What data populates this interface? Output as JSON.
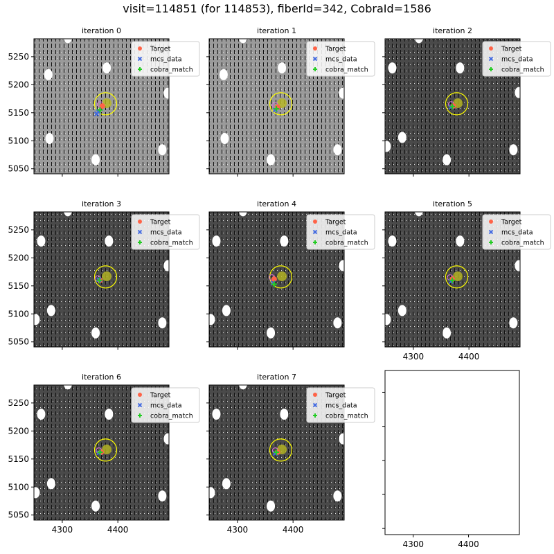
{
  "title": "visit=114851 (for 114853), fiberId=342, CobraId=1586",
  "chart_data": {
    "type": "scatter",
    "xlim": [
      4249,
      4492
    ],
    "ylim": [
      5041,
      5282
    ],
    "xticks": [
      4300,
      4400
    ],
    "yticks": [
      5050,
      5100,
      5150,
      5200,
      5250
    ],
    "legend": {
      "placement": "top-right",
      "entries": [
        "Target",
        "mcs_data",
        "cobra_match"
      ]
    },
    "colors": {
      "Target": "#ff6347",
      "mcs_data": "#4169e1",
      "cobra_match": "#22cc22",
      "patrol": "#ffff00"
    },
    "patrol_center": [
      4378,
      5166
    ],
    "patrol_radius": 20,
    "panels": [
      {
        "title": "iteration 0",
        "bright": true,
        "target": [
          4372,
          5162
        ],
        "mcs": [
          [
            4365,
            5152
          ],
          [
            4362,
            5148
          ]
        ],
        "match": [
          4368,
          5155
        ]
      },
      {
        "title": "iteration 1",
        "bright": true,
        "target": [
          4372,
          5160
        ],
        "mcs": [
          [
            4368,
            5155
          ]
        ],
        "match": [
          4370,
          5157
        ]
      },
      {
        "title": "iteration 2",
        "bright": false,
        "target": [
          4372,
          5162
        ],
        "mcs": [
          [
            4368,
            5160
          ]
        ],
        "match": [
          4370,
          5161
        ]
      },
      {
        "title": "iteration 3",
        "bright": false,
        "target": [
          4368,
          5160
        ],
        "mcs": [
          [
            4366,
            5161
          ]
        ],
        "match": [
          4367,
          5160
        ]
      },
      {
        "title": "iteration 4",
        "bright": false,
        "target": [
          4366,
          5162
        ],
        "mcs": [
          [
            4364,
            5155
          ]
        ],
        "match": [
          4366,
          5153
        ]
      },
      {
        "title": "iteration 5",
        "bright": false,
        "target": [
          4370,
          5162
        ],
        "mcs": [
          [
            4368,
            5158
          ]
        ],
        "match": [
          4370,
          5160
        ]
      },
      {
        "title": "iteration 6",
        "bright": false,
        "target": [
          4370,
          5162
        ],
        "mcs": [
          [
            4366,
            5161
          ]
        ],
        "match": [
          4368,
          5162
        ]
      },
      {
        "title": "iteration 7",
        "bright": false,
        "target": [
          4372,
          5162
        ],
        "mcs": [
          [
            4368,
            5160
          ]
        ],
        "match": [
          4370,
          5162
        ]
      }
    ]
  }
}
